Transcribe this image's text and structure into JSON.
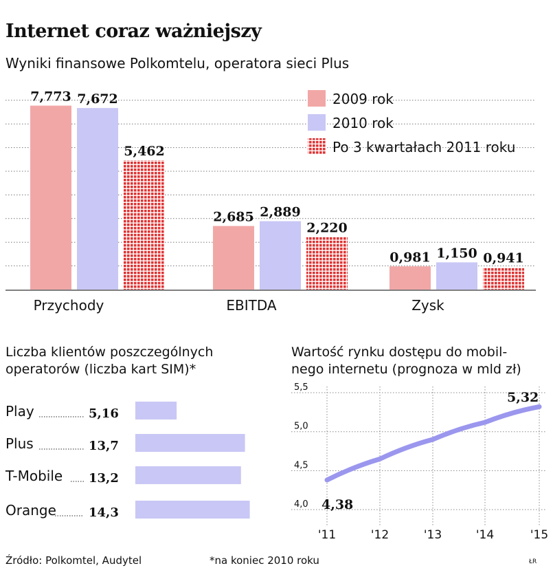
{
  "header": {
    "title": "Internet coraz ważniejszy",
    "subtitle": "Wyniki finansowe Polkomtelu, operatora sieci Plus"
  },
  "colors": {
    "y2009": "#f2a7a7",
    "y2010": "#c9c7f5",
    "y2011": "#e03434",
    "line": "#9b97ee",
    "hbar": "#c9c7f5"
  },
  "chart_data": [
    {
      "type": "bar",
      "categories": [
        "Przychody",
        "EBITDA",
        "Zysk"
      ],
      "series": [
        {
          "name": "2009 rok",
          "values": [
            7.773,
            2.685,
            0.981
          ],
          "labels": [
            "7,773",
            "2,685",
            "0,981"
          ]
        },
        {
          "name": "2010 rok",
          "values": [
            7.672,
            2.889,
            1.15
          ],
          "labels": [
            "7,672",
            "2,889",
            "1,150"
          ]
        },
        {
          "name": "Po 3 kwartałach 2011 roku",
          "values": [
            5.462,
            2.22,
            0.941
          ],
          "labels": [
            "5,462",
            "2,220",
            "0,941"
          ]
        }
      ],
      "ylim": [
        0,
        8
      ],
      "legend": "top-right",
      "grid": true
    },
    {
      "type": "bar",
      "orientation": "horizontal",
      "title": "Liczba klientów poszczególnych operatorów (liczba kart SIM)*",
      "title_lines": [
        "Liczba klientów poszczególnych",
        "operatorów (liczba kart SIM)*"
      ],
      "categories": [
        "Play",
        "Plus",
        "T-Mobile",
        "Orange"
      ],
      "values": [
        5.16,
        13.7,
        13.2,
        14.3
      ],
      "labels": [
        "5,16",
        "13,7",
        "13,2",
        "14,3"
      ]
    },
    {
      "type": "line",
      "title": "Wartość rynku dostępu do mobilnego internetu (prognoza w mld zł)",
      "title_lines": [
        "Wartość rynku dostępu do mobil-",
        "nego internetu (prognoza w mld zł)"
      ],
      "x": [
        "'11",
        "'12",
        "'13",
        "'14",
        "'15"
      ],
      "values": [
        4.38,
        4.65,
        4.9,
        5.12,
        5.32
      ],
      "start_label": "4,38",
      "end_label": "5,32",
      "ylim": [
        4.0,
        5.5
      ],
      "yticks": [
        "4,0",
        "4,5",
        "5,0",
        "5,5"
      ],
      "grid": true
    }
  ],
  "footer": {
    "source": "Źródło: Polkomtel, Audytel",
    "note": "*na koniec 2010 roku",
    "initials": "ŁR"
  }
}
